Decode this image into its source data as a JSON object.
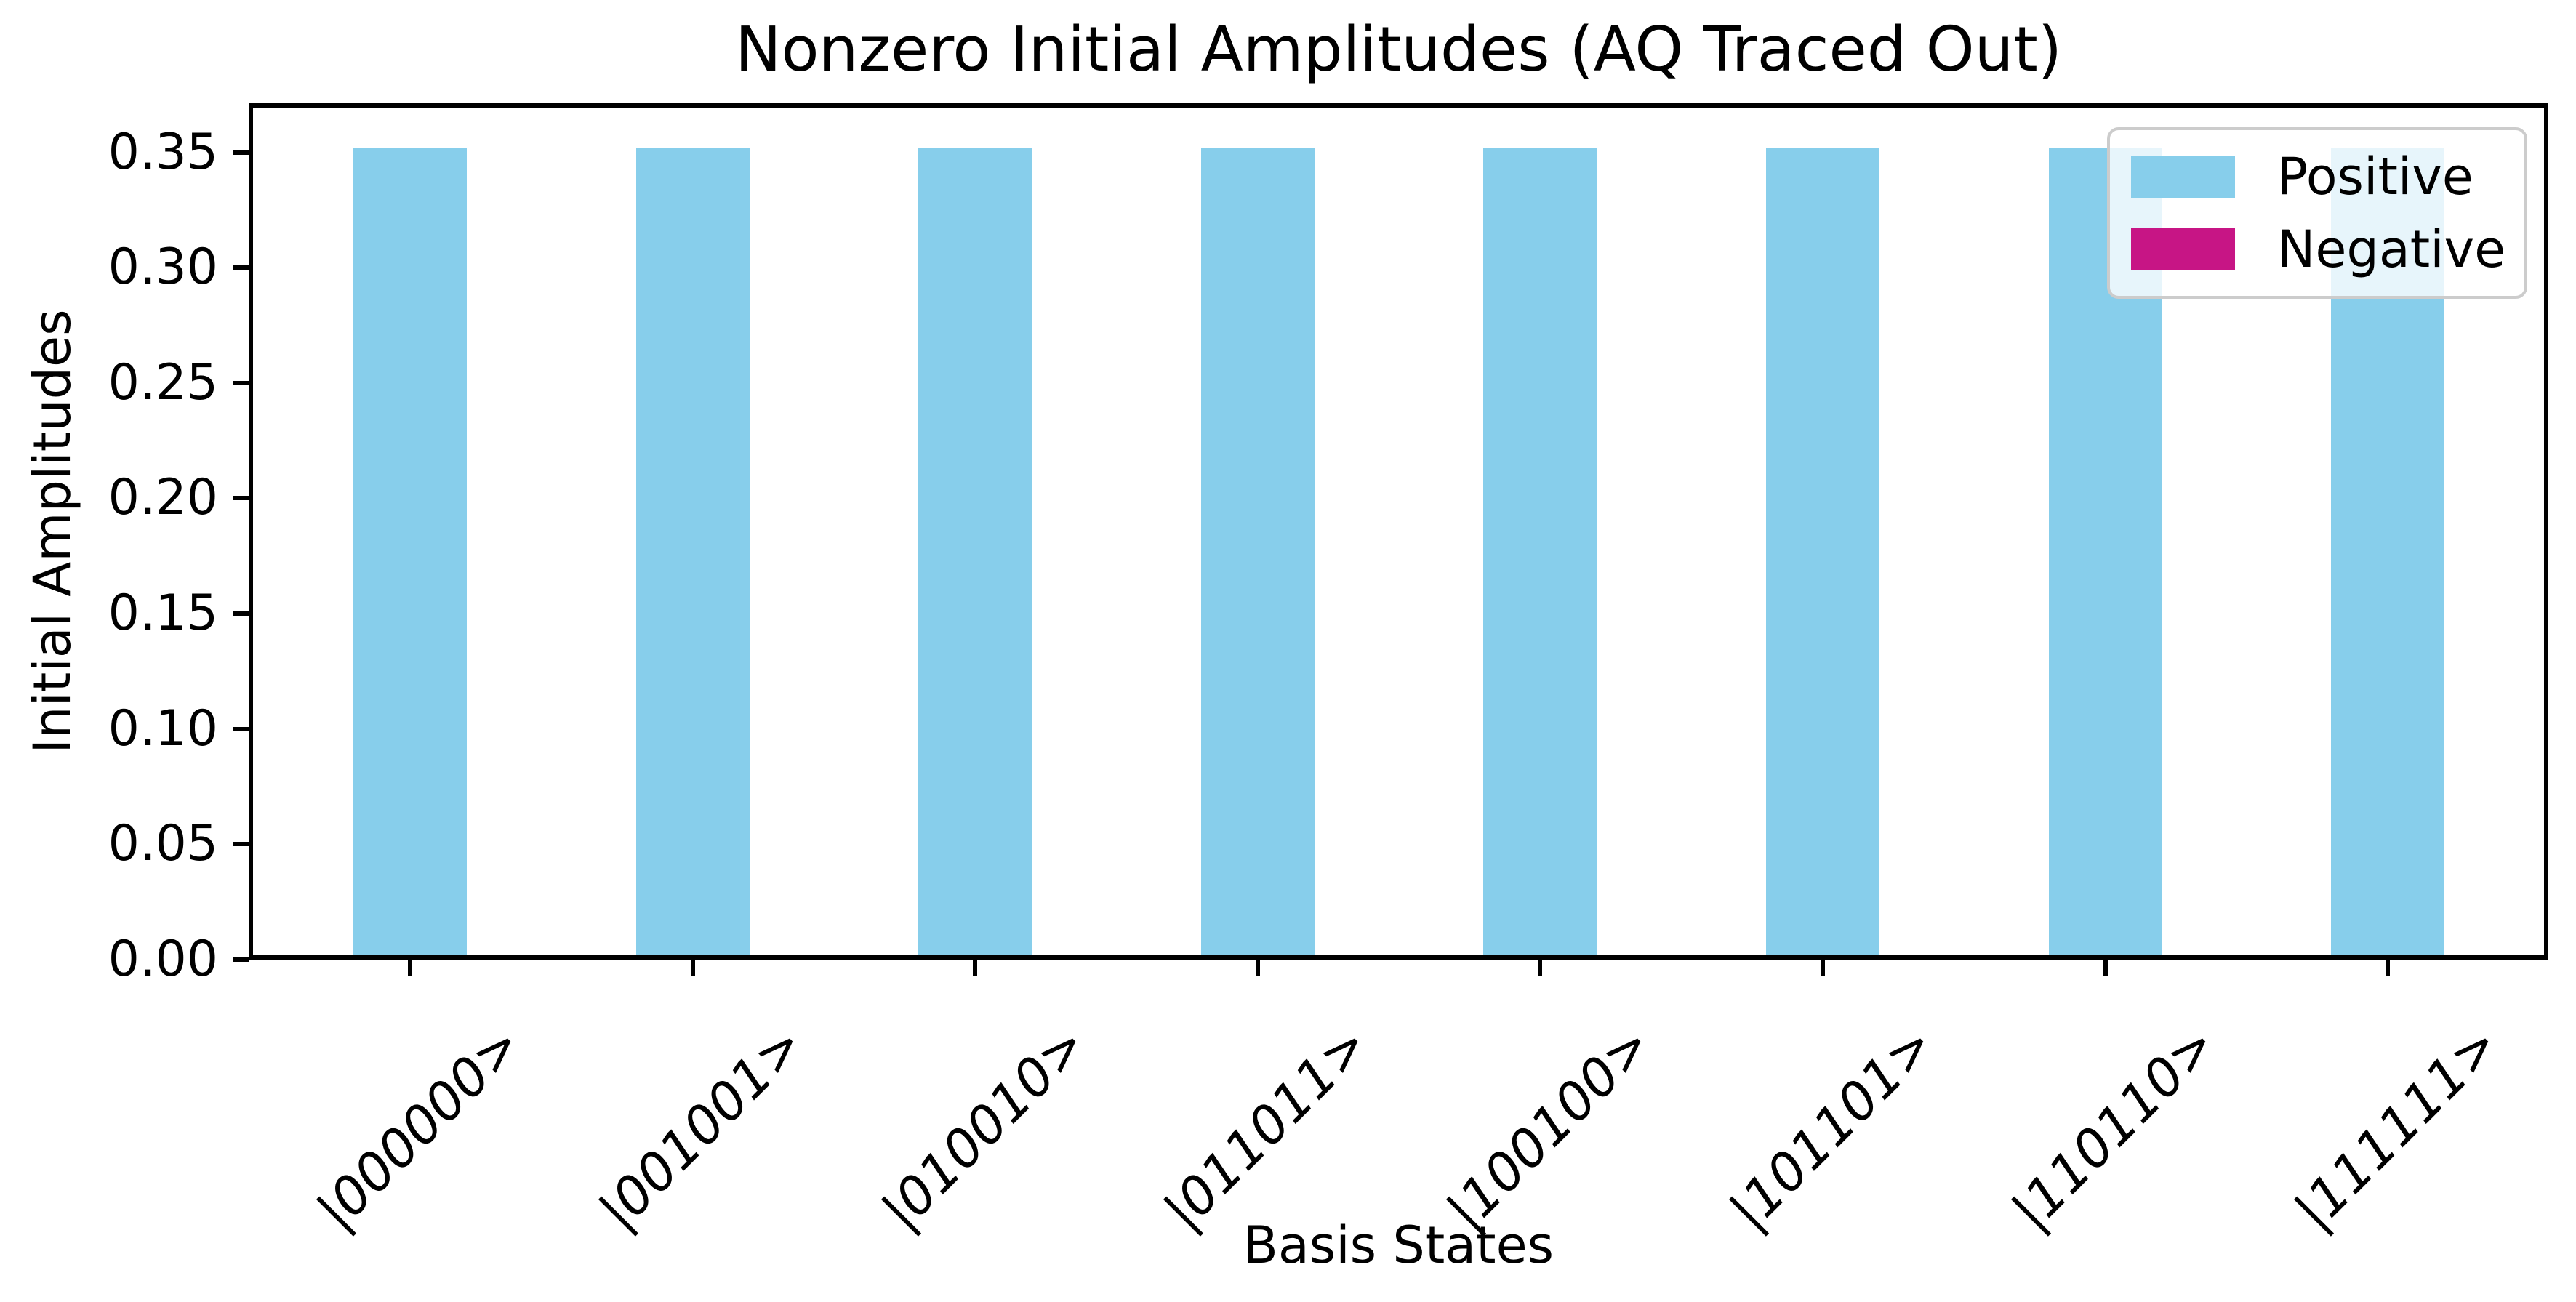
{
  "chart_data": {
    "type": "bar",
    "title": "Nonzero Initial Amplitudes (AQ Traced Out)",
    "xlabel": "Basis States",
    "ylabel": "Initial Amplitudes",
    "categories": [
      "|000000>",
      "|001001>",
      "|010010>",
      "|011011>",
      "|100100>",
      "|101101>",
      "|110110>",
      "|111111>"
    ],
    "series": [
      {
        "name": "Positive",
        "color": "#87CEEB",
        "values": [
          0.3536,
          0.3536,
          0.3536,
          0.3536,
          0.3536,
          0.3536,
          0.3536,
          0.3536
        ]
      },
      {
        "name": "Negative",
        "color": "#C71585",
        "values": [
          0,
          0,
          0,
          0,
          0,
          0,
          0,
          0
        ]
      }
    ],
    "ytick_labels": [
      "0.00",
      "0.05",
      "0.10",
      "0.15",
      "0.20",
      "0.25",
      "0.30",
      "0.35"
    ],
    "ylim": [
      0,
      0.3713
    ],
    "grid": false,
    "legend_position": "upper right",
    "legend_entries": [
      "Positive",
      "Negative"
    ]
  }
}
